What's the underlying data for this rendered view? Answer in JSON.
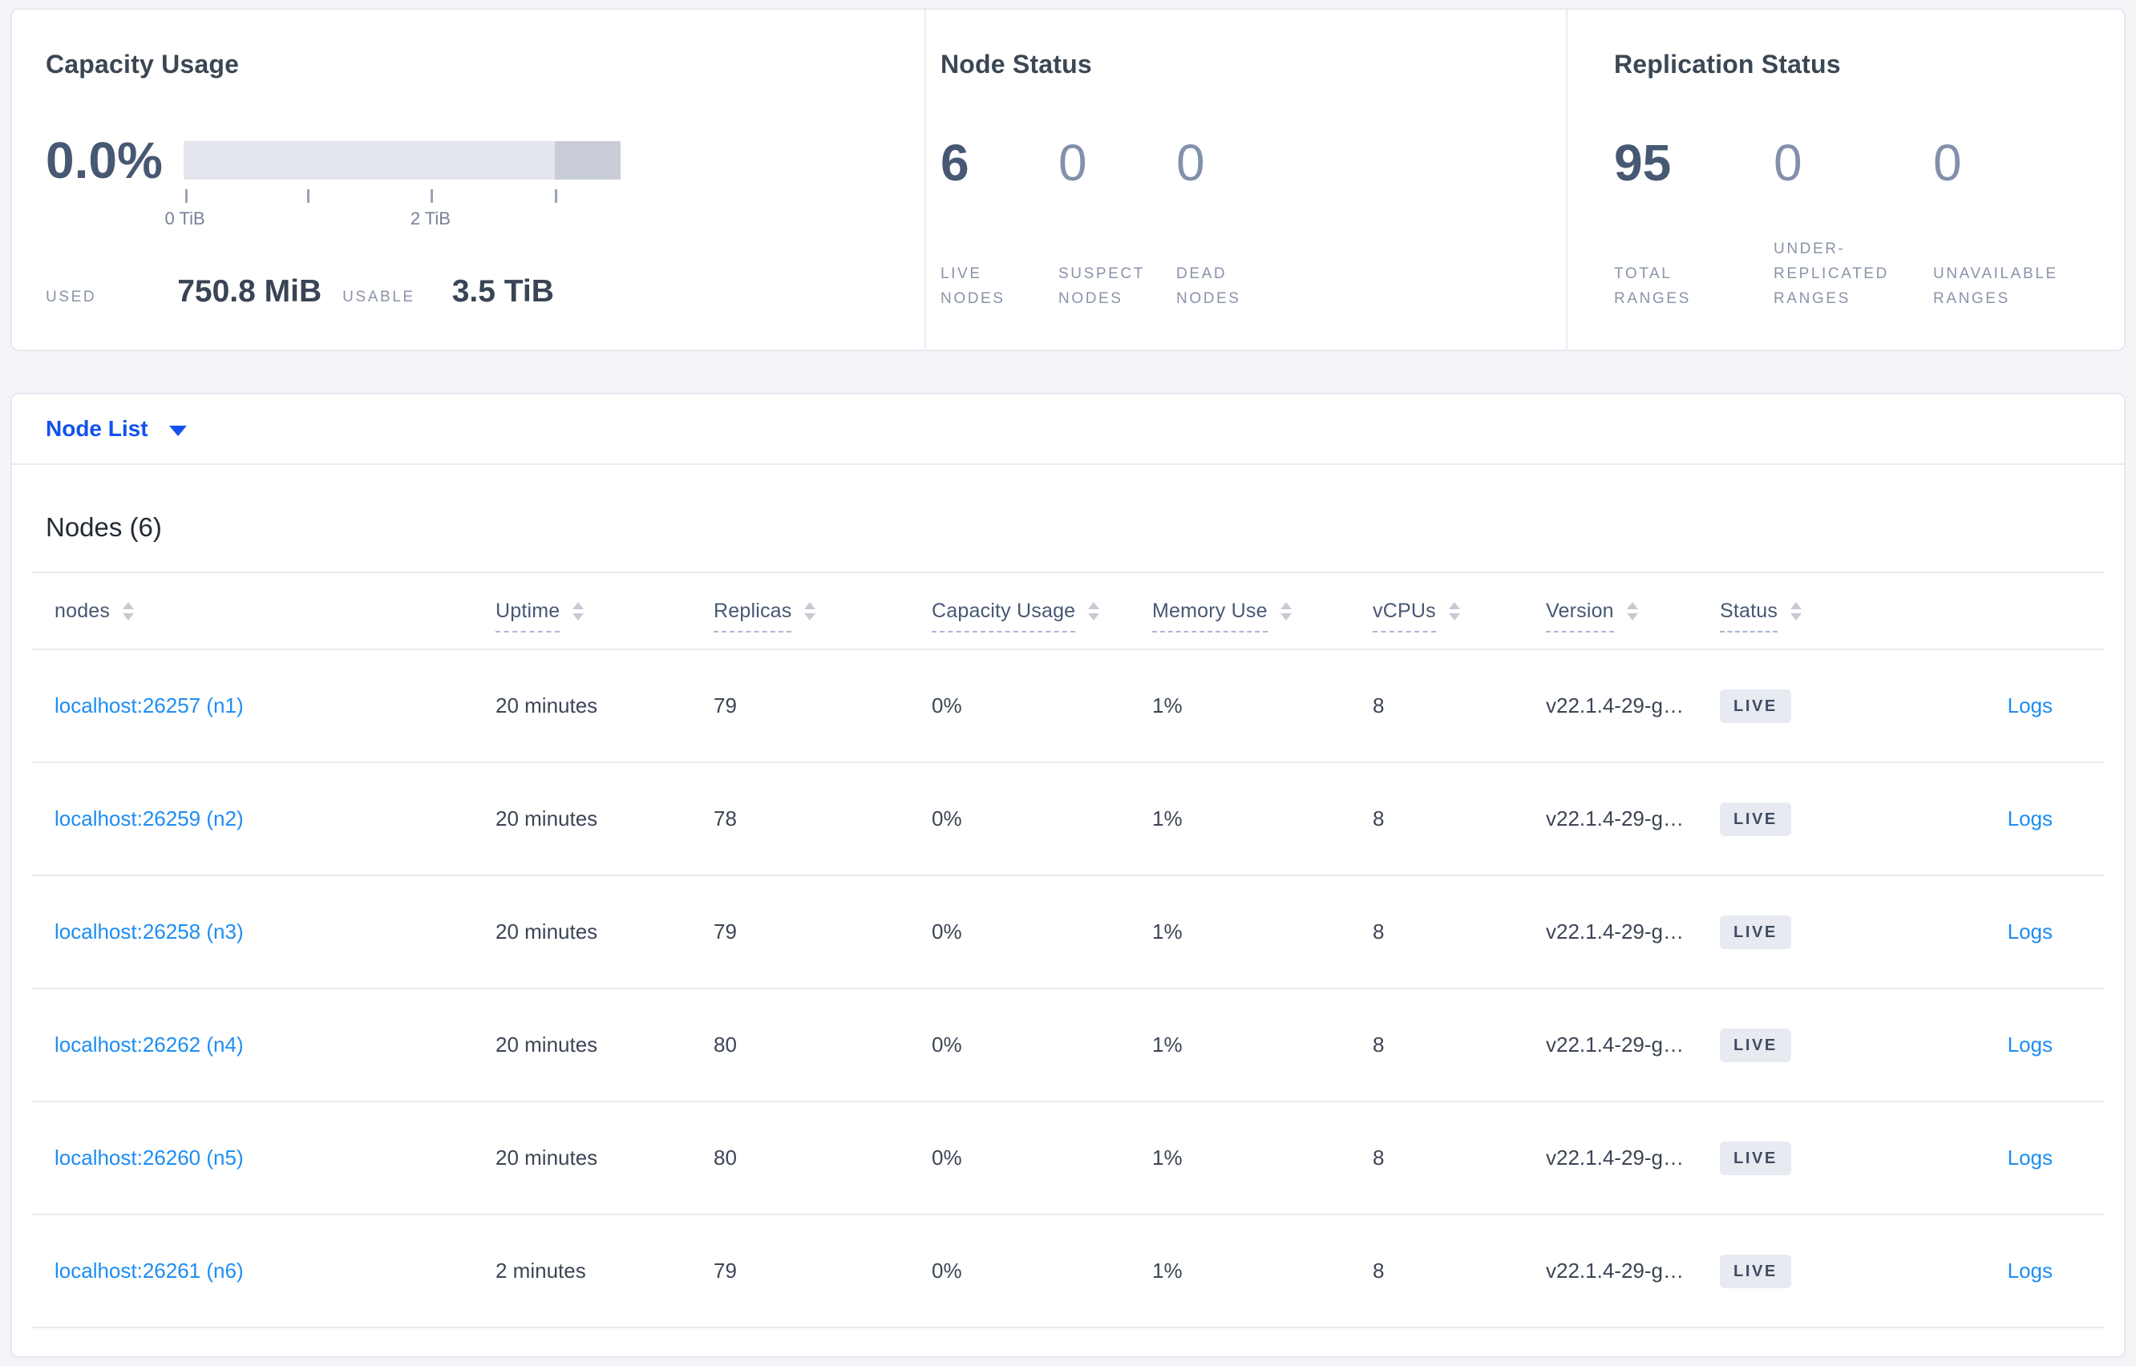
{
  "colors": {
    "selector_blue": "#1151ef",
    "link_blue": "#1d8df2",
    "badge_bg": "#e7eaf1",
    "badge_text": "#3e4c61",
    "bar_light": "#e4e6ee",
    "bar_dark": "#c9cdd8"
  },
  "summary": {
    "capacity": {
      "title": "Capacity Usage",
      "percent": "0.0%",
      "segments": [
        {
          "tone": "light",
          "width_pct": 85
        },
        {
          "tone": "dark",
          "width_pct": 15
        }
      ],
      "ticks": [
        {
          "pos_pct": 0.3,
          "label": "0 TiB"
        },
        {
          "pos_pct": 28.3,
          "label": ""
        },
        {
          "pos_pct": 56.5,
          "label": "2 TiB"
        },
        {
          "pos_pct": 85.0,
          "label": ""
        }
      ],
      "used_label": "USED",
      "used_value": "750.8 MiB",
      "usable_label": "USABLE",
      "usable_value": "3.5 TiB"
    },
    "node_status": {
      "title": "Node Status",
      "stats": [
        {
          "value": "6",
          "label_lines": [
            "LIVE",
            "NODES"
          ],
          "muted": false
        },
        {
          "value": "0",
          "label_lines": [
            "SUSPECT",
            "NODES"
          ],
          "muted": true
        },
        {
          "value": "0",
          "label_lines": [
            "DEAD",
            "NODES"
          ],
          "muted": true
        }
      ]
    },
    "replication": {
      "title": "Replication Status",
      "stats": [
        {
          "value": "95",
          "label_lines": [
            "TOTAL",
            "RANGES"
          ],
          "muted": false
        },
        {
          "value": "0",
          "label_lines": [
            "UNDER-",
            "REPLICATED",
            "RANGES"
          ],
          "muted": true
        },
        {
          "value": "0",
          "label_lines": [
            "UNAVAILABLE",
            "RANGES"
          ],
          "muted": true
        }
      ]
    }
  },
  "view_selector": {
    "label": "Node List"
  },
  "table": {
    "heading": "Nodes (6)",
    "logs_label": "Logs",
    "columns": [
      {
        "label": "nodes",
        "underline": false,
        "sortable": true
      },
      {
        "label": "Uptime",
        "underline": true,
        "sortable": true
      },
      {
        "label": "Replicas",
        "underline": true,
        "sortable": true
      },
      {
        "label": "Capacity Usage",
        "underline": true,
        "sortable": true
      },
      {
        "label": "Memory Use",
        "underline": true,
        "sortable": true
      },
      {
        "label": "vCPUs",
        "underline": true,
        "sortable": true
      },
      {
        "label": "Version",
        "underline": true,
        "sortable": true
      },
      {
        "label": "Status",
        "underline": true,
        "sortable": true
      },
      {
        "label": "",
        "underline": false,
        "sortable": false
      }
    ],
    "rows": [
      {
        "node": "localhost:26257 (n1)",
        "uptime": "20 minutes",
        "replicas": "79",
        "capacity": "0%",
        "memory": "1%",
        "vcpus": "8",
        "version": "v22.1.4-29-g…",
        "status": "LIVE"
      },
      {
        "node": "localhost:26259 (n2)",
        "uptime": "20 minutes",
        "replicas": "78",
        "capacity": "0%",
        "memory": "1%",
        "vcpus": "8",
        "version": "v22.1.4-29-g…",
        "status": "LIVE"
      },
      {
        "node": "localhost:26258 (n3)",
        "uptime": "20 minutes",
        "replicas": "79",
        "capacity": "0%",
        "memory": "1%",
        "vcpus": "8",
        "version": "v22.1.4-29-g…",
        "status": "LIVE"
      },
      {
        "node": "localhost:26262 (n4)",
        "uptime": "20 minutes",
        "replicas": "80",
        "capacity": "0%",
        "memory": "1%",
        "vcpus": "8",
        "version": "v22.1.4-29-g…",
        "status": "LIVE"
      },
      {
        "node": "localhost:26260 (n5)",
        "uptime": "20 minutes",
        "replicas": "80",
        "capacity": "0%",
        "memory": "1%",
        "vcpus": "8",
        "version": "v22.1.4-29-g…",
        "status": "LIVE"
      },
      {
        "node": "localhost:26261 (n6)",
        "uptime": "2 minutes",
        "replicas": "79",
        "capacity": "0%",
        "memory": "1%",
        "vcpus": "8",
        "version": "v22.1.4-29-g…",
        "status": "LIVE"
      }
    ]
  }
}
